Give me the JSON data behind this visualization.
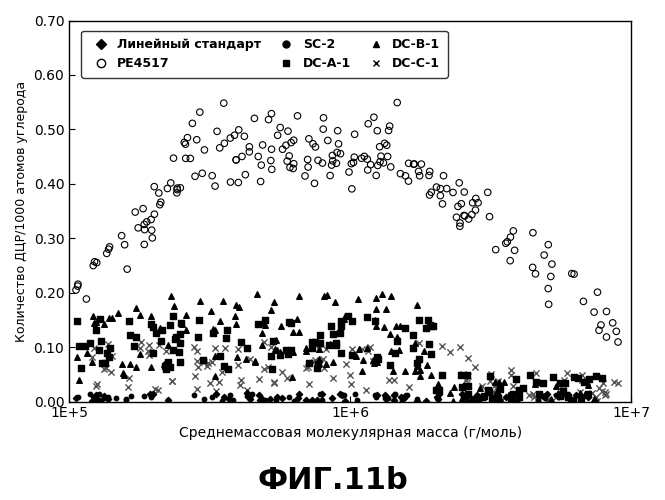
{
  "title": "ФИГ.11b",
  "xlabel": "Среднемассовая молекулярная масса (г/моль)",
  "ylabel": "Количество ДЦР/1000 атомов углерода",
  "xlim_log": [
    100000,
    10000000
  ],
  "ylim": [
    0.0,
    0.7
  ],
  "yticks": [
    0.0,
    0.1,
    0.2,
    0.3,
    0.4,
    0.5,
    0.6,
    0.7
  ],
  "xtick_labels": [
    "1E+5",
    "1E+6",
    "1E+7"
  ],
  "xtick_vals": [
    100000,
    1000000,
    10000000
  ],
  "background_color": "#ffffff"
}
